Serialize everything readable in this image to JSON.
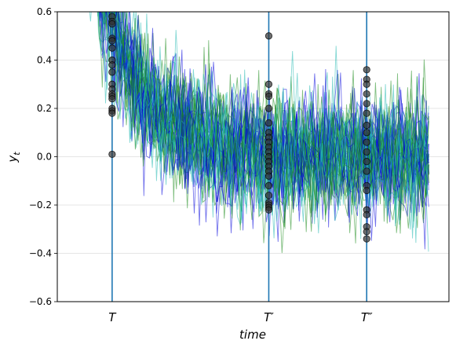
{
  "chart_data": {
    "type": "line",
    "title": "",
    "xlabel": "time",
    "ylabel": "y_t",
    "ylim": [
      -0.6,
      0.6
    ],
    "yticks": [
      -0.6,
      -0.4,
      -0.2,
      0.0,
      0.2,
      0.4,
      0.6
    ],
    "ytick_labels": [
      "−0.6",
      "−0.4",
      "−0.2",
      "0.0",
      "0.2",
      "0.4",
      "0.6"
    ],
    "grid": "horizontal",
    "x_range": [
      0,
      100
    ],
    "vertical_markers": [
      {
        "label": "T",
        "x": 14
      },
      {
        "label": "T′",
        "x": 54
      },
      {
        "label": "T″",
        "x": 79
      }
    ],
    "series_colors": [
      "#0000dd",
      "#20b8b0",
      "#1a8a1a"
    ],
    "marker_color": "#333333",
    "line_color": "#1f77b4",
    "trajectories": {
      "count": 48,
      "decay_model": "y = 1.3*exp(-t/12) + noise",
      "noise_sd": 0.12
    },
    "marker_samples": {
      "T": [
        0.58,
        0.56,
        0.55,
        0.49,
        0.48,
        0.45,
        0.4,
        0.38,
        0.35,
        0.3,
        0.28,
        0.26,
        0.25,
        0.24,
        0.2,
        0.19,
        0.18,
        0.01
      ],
      "T′": [
        0.5,
        0.3,
        0.26,
        0.25,
        0.2,
        0.14,
        0.1,
        0.08,
        0.06,
        0.04,
        0.02,
        0.0,
        -0.02,
        -0.04,
        -0.06,
        -0.08,
        -0.12,
        -0.16,
        -0.19,
        -0.2,
        -0.21,
        -0.22
      ],
      "T″": [
        0.36,
        0.32,
        0.3,
        0.26,
        0.22,
        0.18,
        0.13,
        0.1,
        0.06,
        0.02,
        -0.02,
        -0.06,
        -0.12,
        -0.14,
        -0.22,
        -0.24,
        -0.29,
        -0.31,
        -0.34
      ]
    }
  }
}
